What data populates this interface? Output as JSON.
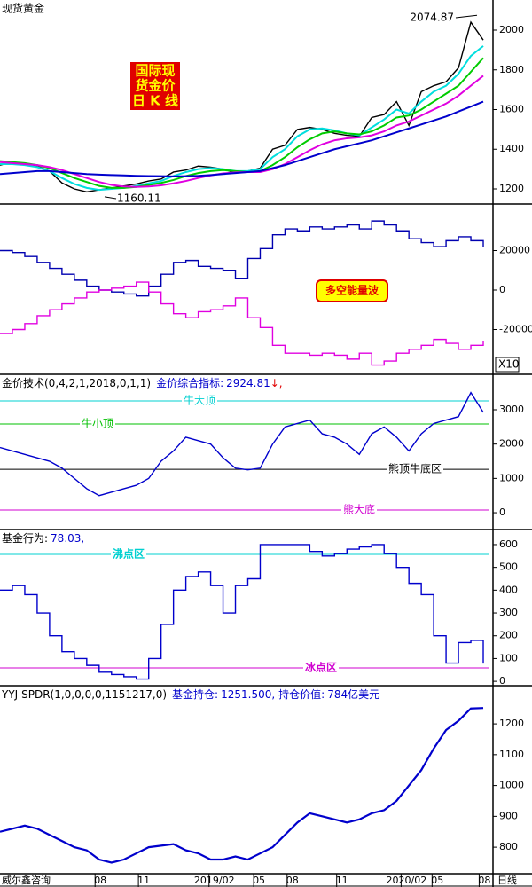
{
  "chart_data": [
    {
      "type": "line",
      "title": "现货黄金",
      "badge": [
        "国际现",
        "货金价",
        "日 K 线"
      ],
      "annotations": [
        {
          "label": "2074.87",
          "value": 2074.87
        },
        {
          "label": "1160.11",
          "value": 1160.11
        }
      ],
      "xlim": [
        0,
        39.5
      ],
      "ylim": [
        1124,
        2152
      ],
      "yticks": [
        1200,
        1400,
        1600,
        1800,
        2000
      ],
      "series": [
        {
          "name": "price",
          "color": "#000000",
          "values": [
            1320,
            1335,
            1325,
            1315,
            1290,
            1230,
            1200,
            1185,
            1195,
            1205,
            1215,
            1225,
            1240,
            1250,
            1285,
            1295,
            1315,
            1310,
            1300,
            1280,
            1290,
            1305,
            1400,
            1420,
            1500,
            1510,
            1500,
            1480,
            1470,
            1465,
            1560,
            1575,
            1640,
            1520,
            1690,
            1720,
            1740,
            1810,
            2040,
            1950
          ]
        },
        {
          "name": "ma-short",
          "color": "#00dede",
          "values": [
            1325,
            1325,
            1320,
            1310,
            1290,
            1255,
            1225,
            1205,
            1195,
            1200,
            1205,
            1215,
            1228,
            1240,
            1265,
            1285,
            1300,
            1305,
            1300,
            1290,
            1290,
            1300,
            1360,
            1400,
            1465,
            1500,
            1505,
            1495,
            1480,
            1470,
            1510,
            1550,
            1600,
            1580,
            1640,
            1690,
            1720,
            1780,
            1870,
            1920
          ]
        },
        {
          "name": "ma-mid",
          "color": "#00cc00",
          "values": [
            1340,
            1335,
            1330,
            1320,
            1305,
            1280,
            1255,
            1235,
            1215,
            1205,
            1205,
            1210,
            1220,
            1230,
            1245,
            1265,
            1280,
            1290,
            1295,
            1290,
            1285,
            1290,
            1320,
            1360,
            1410,
            1450,
            1480,
            1490,
            1480,
            1475,
            1490,
            1520,
            1560,
            1570,
            1600,
            1640,
            1680,
            1720,
            1790,
            1860
          ]
        },
        {
          "name": "ma-long",
          "color": "#e000e0",
          "values": [
            1335,
            1330,
            1325,
            1320,
            1310,
            1295,
            1275,
            1255,
            1235,
            1220,
            1212,
            1210,
            1212,
            1218,
            1228,
            1240,
            1255,
            1268,
            1278,
            1283,
            1285,
            1285,
            1300,
            1325,
            1360,
            1395,
            1425,
            1445,
            1455,
            1460,
            1470,
            1490,
            1520,
            1540,
            1570,
            1600,
            1630,
            1670,
            1720,
            1770
          ]
        },
        {
          "name": "ma-longest",
          "color": "#0000cc",
          "values": [
            1275,
            1280,
            1285,
            1290,
            1290,
            1285,
            1280,
            1275,
            1272,
            1270,
            1268,
            1266,
            1265,
            1264,
            1263,
            1264,
            1266,
            1270,
            1275,
            1280,
            1285,
            1290,
            1305,
            1320,
            1340,
            1360,
            1380,
            1400,
            1415,
            1430,
            1445,
            1465,
            1485,
            1505,
            1525,
            1545,
            1565,
            1590,
            1615,
            1640
          ]
        }
      ]
    },
    {
      "type": "line",
      "step": true,
      "badge_text": "多空能量波",
      "scale_note": "X10",
      "xlim": [
        0,
        39.5
      ],
      "ylim": [
        -42700,
        43600
      ],
      "yticks": [
        20000,
        0,
        -20000
      ],
      "series": [
        {
          "name": "long",
          "color": "#0000b0",
          "values": [
            20000,
            19000,
            17000,
            14000,
            11000,
            8000,
            5000,
            2000,
            0,
            -1000,
            -2000,
            -3000,
            2000,
            8000,
            14000,
            15000,
            12000,
            11000,
            10000,
            6000,
            16000,
            21000,
            28000,
            31000,
            30000,
            32000,
            31000,
            32000,
            33000,
            31000,
            35000,
            33000,
            30000,
            26000,
            24000,
            22000,
            25000,
            27000,
            25000,
            22000
          ]
        },
        {
          "name": "short",
          "color": "#e000e0",
          "values": [
            -22000,
            -20000,
            -17000,
            -13000,
            -10000,
            -7000,
            -4000,
            -1000,
            0,
            1000,
            2000,
            4000,
            -1000,
            -7000,
            -12000,
            -14000,
            -11000,
            -10000,
            -8000,
            -4000,
            -14000,
            -19000,
            -28000,
            -32000,
            -32000,
            -33000,
            -32000,
            -33000,
            -35000,
            -32000,
            -38000,
            -36000,
            -32000,
            -30000,
            -28000,
            -25000,
            -27000,
            -30000,
            -28000,
            -26000
          ]
        }
      ]
    },
    {
      "type": "line",
      "title": "金价技术(0,4,2,1,2018,0,1,1)",
      "indicator_name": "金价综合指标:",
      "indicator_value": 2924.81,
      "indicator_suffix": "↓,",
      "xlim": [
        0,
        39.5
      ],
      "ylim": [
        -490,
        4034
      ],
      "yticks": [
        0,
        1000,
        2000,
        3000
      ],
      "reference_lines": [
        {
          "label": "牛大顶",
          "value": 3258,
          "color": "#00d0d0"
        },
        {
          "label": "牛小顶",
          "value": 2587,
          "color": "#00c000"
        },
        {
          "label": "熊顶牛底区",
          "value": 1266,
          "color": "#000000"
        },
        {
          "label": "熊大底",
          "value": 78,
          "color": "#d000d0"
        }
      ],
      "series": [
        {
          "name": "gold-tech",
          "color": "#0000cc",
          "values": [
            1900,
            1800,
            1700,
            1600,
            1500,
            1300,
            1000,
            700,
            500,
            600,
            700,
            800,
            1000,
            1500,
            1800,
            2200,
            2100,
            2000,
            1600,
            1300,
            1250,
            1300,
            2000,
            2500,
            2600,
            2700,
            2300,
            2200,
            2000,
            1700,
            2300,
            2500,
            2200,
            1800,
            2300,
            2600,
            2700,
            2800,
            3500,
            2924.81
          ]
        }
      ]
    },
    {
      "type": "line",
      "step": true,
      "title": "基金行为:",
      "indicator_text": "78.03,",
      "xlim": [
        0,
        39.5
      ],
      "ylim": [
        -19,
        666
      ],
      "yticks": [
        0,
        100,
        200,
        300,
        400,
        500,
        600
      ],
      "reference_lines": [
        {
          "label": "沸点区",
          "value": 557,
          "color": "#00d0d0"
        },
        {
          "label": "冰点区",
          "value": 59,
          "color": "#d000d0"
        }
      ],
      "series": [
        {
          "name": "fund-behavior",
          "color": "#0000cc",
          "values": [
            400,
            420,
            380,
            300,
            200,
            130,
            100,
            70,
            40,
            30,
            20,
            10,
            100,
            250,
            400,
            460,
            480,
            420,
            300,
            420,
            450,
            600,
            600,
            600,
            600,
            570,
            550,
            560,
            580,
            590,
            600,
            560,
            500,
            430,
            380,
            200,
            80,
            170,
            180,
            78.03
          ]
        }
      ]
    },
    {
      "type": "line",
      "title": "YYJ-SPDR(1,0,0,0,0,1151217,0)",
      "holding_name": "基金持仓:",
      "holding_text": "1251.500,",
      "value_name": "持仓价值:",
      "value_text": "784亿美元",
      "xlim": [
        0,
        39.5
      ],
      "ylim": [
        714,
        1324
      ],
      "yticks": [
        800,
        900,
        1000,
        1100,
        1200
      ],
      "xticks": [
        {
          "value": 8.1,
          "label": "08"
        },
        {
          "value": 11.6,
          "label": "11"
        },
        {
          "value": 17.3,
          "label": "2019/02"
        },
        {
          "value": 20.9,
          "label": "05"
        },
        {
          "value": 23.6,
          "label": "08"
        },
        {
          "value": 27.6,
          "label": "11"
        },
        {
          "value": 32.8,
          "label": "2020/02"
        },
        {
          "value": 35.3,
          "label": "05"
        },
        {
          "value": 39.1,
          "label": "08"
        }
      ],
      "source": "威尔鑫咨询",
      "period": "日线",
      "series": [
        {
          "name": "spdr",
          "color": "#0000cc",
          "values": [
            850,
            860,
            870,
            860,
            840,
            820,
            800,
            790,
            760,
            750,
            760,
            780,
            800,
            805,
            810,
            790,
            780,
            760,
            760,
            770,
            760,
            780,
            800,
            840,
            880,
            910,
            900,
            890,
            880,
            890,
            910,
            920,
            950,
            1000,
            1050,
            1120,
            1180,
            1210,
            1250,
            1251.5
          ]
        }
      ]
    }
  ]
}
